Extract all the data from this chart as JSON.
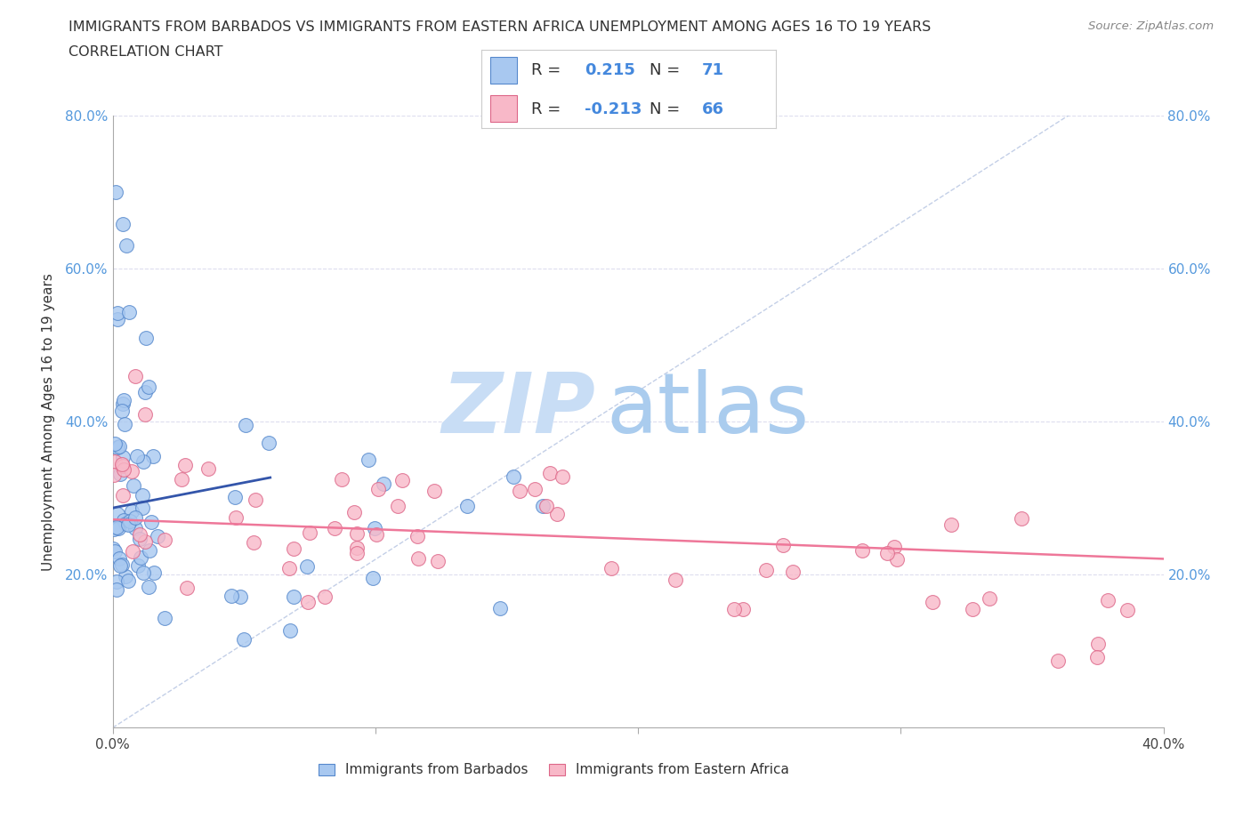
{
  "title_line1": "IMMIGRANTS FROM BARBADOS VS IMMIGRANTS FROM EASTERN AFRICA UNEMPLOYMENT AMONG AGES 16 TO 19 YEARS",
  "title_line2": "CORRELATION CHART",
  "source_text": "Source: ZipAtlas.com",
  "ylabel": "Unemployment Among Ages 16 to 19 years",
  "xlim": [
    0.0,
    0.4
  ],
  "ylim": [
    0.0,
    0.8
  ],
  "xticks": [
    0.0,
    0.1,
    0.2,
    0.3,
    0.4
  ],
  "yticks": [
    0.0,
    0.2,
    0.4,
    0.6,
    0.8
  ],
  "xtick_labels": [
    "0.0%",
    "",
    "",
    "",
    "40.0%"
  ],
  "ytick_labels_left": [
    "",
    "20.0%",
    "40.0%",
    "60.0%",
    "80.0%"
  ],
  "ytick_labels_right": [
    "",
    "20.0%",
    "40.0%",
    "60.0%",
    "80.0%"
  ],
  "barbados_color": "#a8c8f0",
  "barbados_edge_color": "#5588cc",
  "eastern_africa_color": "#f8b8c8",
  "eastern_africa_edge_color": "#dd6688",
  "barbados_trend_color": "#3355aa",
  "eastern_africa_trend_color": "#ee7799",
  "diag_color": "#aabbdd",
  "R_barbados": 0.215,
  "N_barbados": 71,
  "R_eastern_africa": -0.213,
  "N_eastern_africa": 66,
  "watermark_zip": "ZIP",
  "watermark_atlas": "atlas",
  "watermark_color_zip": "#c8ddf5",
  "watermark_color_atlas": "#aaccee",
  "legend_label_barbados": "Immigrants from Barbados",
  "legend_label_eastern_africa": "Immigrants from Eastern Africa",
  "r_n_color": "#4488dd",
  "legend_box_color": "#cccccc"
}
